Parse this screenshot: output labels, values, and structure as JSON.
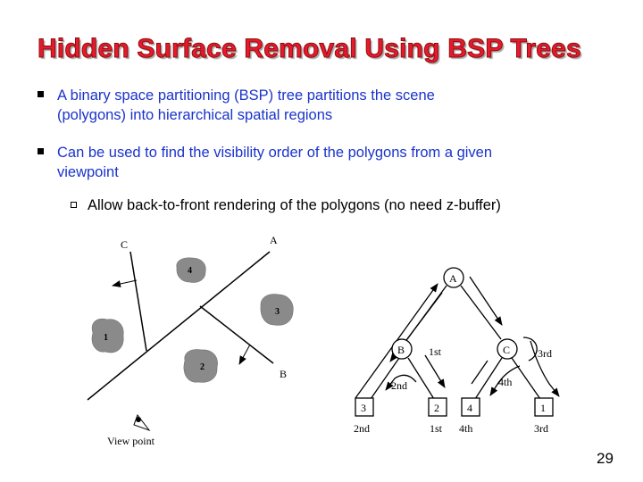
{
  "slide": {
    "title": "Hidden Surface Removal Using BSP Trees",
    "bullets": [
      {
        "text": "A binary space partitioning (BSP) tree partitions the scene (polygons) into hierarchical spatial regions",
        "line1": "A binary space partitioning (BSP) tree partitions the scene",
        "line2": "(polygons) into hierarchical spatial regions"
      },
      {
        "text": "Can be used to find the visibility order of the polygons from a given viewpoint",
        "line1": "Can be used to find the visibility order of the polygons from a given",
        "line2": "viewpoint",
        "sub_bullets": [
          {
            "text": "Allow back-to-front rendering of the polygons (no need z-buffer)"
          }
        ]
      }
    ],
    "page_number": "29"
  },
  "left_figure": {
    "plane_labels": [
      "C",
      "A",
      "B"
    ],
    "polygon_labels": [
      "1",
      "2",
      "3",
      "4"
    ],
    "viewpoint_label": "View point"
  },
  "right_figure": {
    "nodes": [
      "A",
      "B",
      "C"
    ],
    "leaves": [
      "3",
      "2",
      "4",
      "1"
    ],
    "order_labels": [
      "1st",
      "2nd",
      "3rd",
      "4th"
    ],
    "leaf_order_labels": [
      "2nd",
      "1st",
      "4th",
      "3rd"
    ]
  },
  "colors": {
    "title_fill": "#e8192c",
    "title_outline": "#8c0f0f",
    "bullet_text": "#1a33cc",
    "sub_bullet_text": "#000000",
    "polygon_fill": "#8a8a8a"
  }
}
